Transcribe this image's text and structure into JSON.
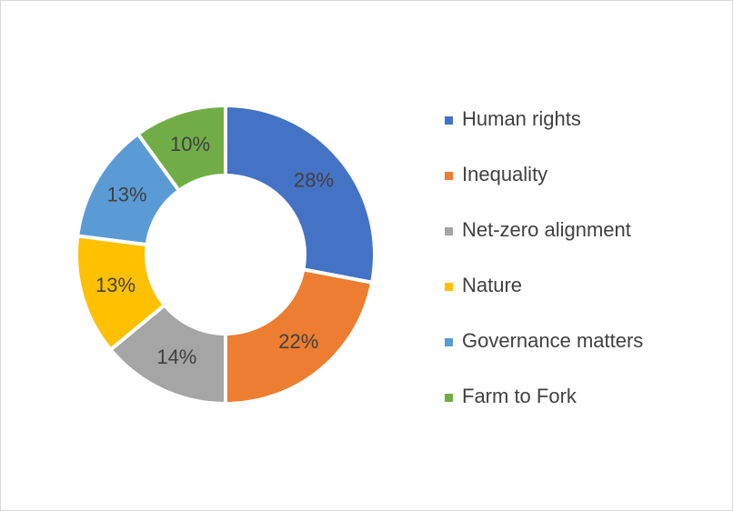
{
  "chart_data": {
    "type": "donut",
    "categories": [
      "Human rights",
      "Inequality",
      "Net-zero alignment",
      "Nature",
      "Governance matters",
      "Farm to Fork"
    ],
    "values": [
      28,
      22,
      14,
      13,
      13,
      10
    ],
    "value_labels": [
      "28%",
      "22%",
      "14%",
      "13%",
      "13%",
      "10%"
    ],
    "colors": [
      "#4472c4",
      "#ed7d31",
      "#a5a5a5",
      "#ffc000",
      "#5b9bd5",
      "#70ad47"
    ],
    "legend": "right"
  }
}
